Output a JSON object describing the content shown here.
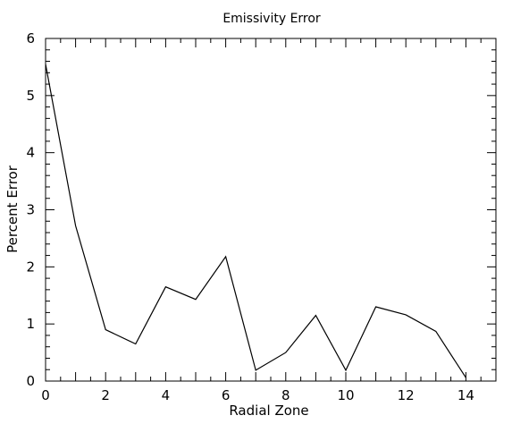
{
  "chart_data": {
    "type": "line",
    "title": "Emissivity Error",
    "xlabel": "Radial Zone",
    "ylabel": "Percent Error",
    "xlim": [
      0,
      15
    ],
    "ylim": [
      0,
      6
    ],
    "x_major_ticks": [
      0,
      2,
      4,
      6,
      8,
      10,
      12,
      14
    ],
    "y_major_ticks": [
      0,
      1,
      2,
      3,
      4,
      5,
      6
    ],
    "x_minor_step": 0.5,
    "y_minor_step": 0.2,
    "grid": false,
    "series": [
      {
        "x": [
          0,
          1,
          2,
          3,
          4,
          5,
          6,
          7,
          8,
          9,
          10,
          11,
          12,
          13,
          14
        ],
        "values": [
          5.55,
          2.72,
          0.9,
          0.65,
          1.65,
          1.43,
          2.18,
          0.19,
          0.5,
          1.15,
          0.19,
          1.3,
          1.16,
          0.87,
          0.06
        ]
      }
    ]
  }
}
